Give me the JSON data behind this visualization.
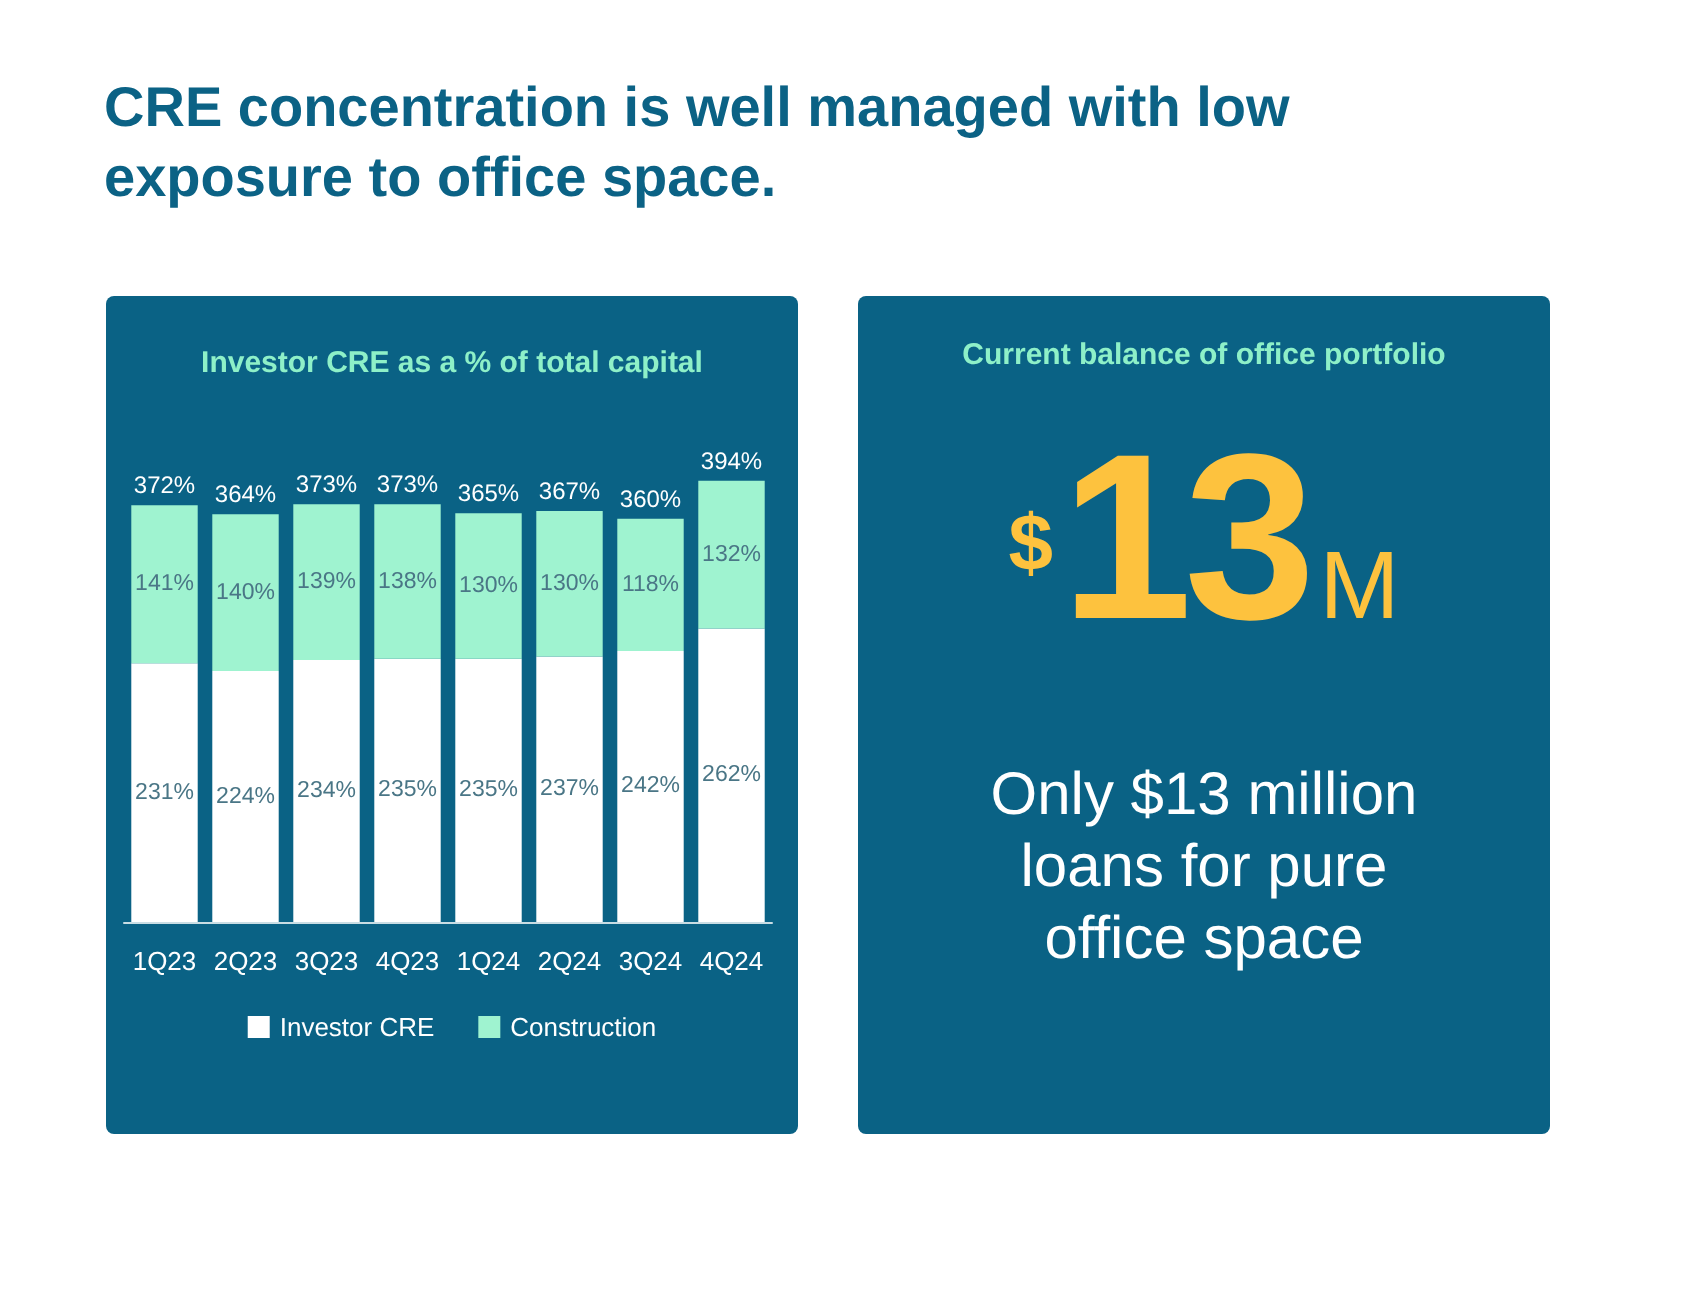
{
  "chart_data": [
    {
      "type": "other",
      "title": "CRE concentration is well managed with low exposure to office space."
    },
    {
      "type": "bar",
      "title": "Investor CRE as a % of total capital",
      "categories": [
        "1Q23",
        "2Q23",
        "3Q23",
        "4Q23",
        "1Q24",
        "2Q24",
        "3Q24",
        "4Q24"
      ],
      "stacked": true,
      "series": [
        {
          "name": "Investor CRE",
          "color": "#ffffff",
          "values": [
            231,
            224,
            234,
            235,
            235,
            237,
            242,
            262
          ],
          "value_labels": [
            "231%",
            "224%",
            "234%",
            "235%",
            "235%",
            "237%",
            "242%",
            "262%"
          ]
        },
        {
          "name": "Construction",
          "color": "#9ff3d0",
          "values": [
            141,
            140,
            139,
            138,
            130,
            130,
            118,
            132
          ],
          "value_labels": [
            "141%",
            "140%",
            "139%",
            "138%",
            "130%",
            "130%",
            "118%",
            "132%"
          ]
        }
      ],
      "totals": [
        "372%",
        "364%",
        "373%",
        "373%",
        "365%",
        "367%",
        "360%",
        "394%"
      ],
      "legend": "bottom",
      "tick_labels": "x"
    },
    {
      "type": "other",
      "title": "Current balance of office portfolio",
      "annotations": [
        "$13M",
        "Only $13 million loans for pure office space"
      ]
    }
  ]
}
